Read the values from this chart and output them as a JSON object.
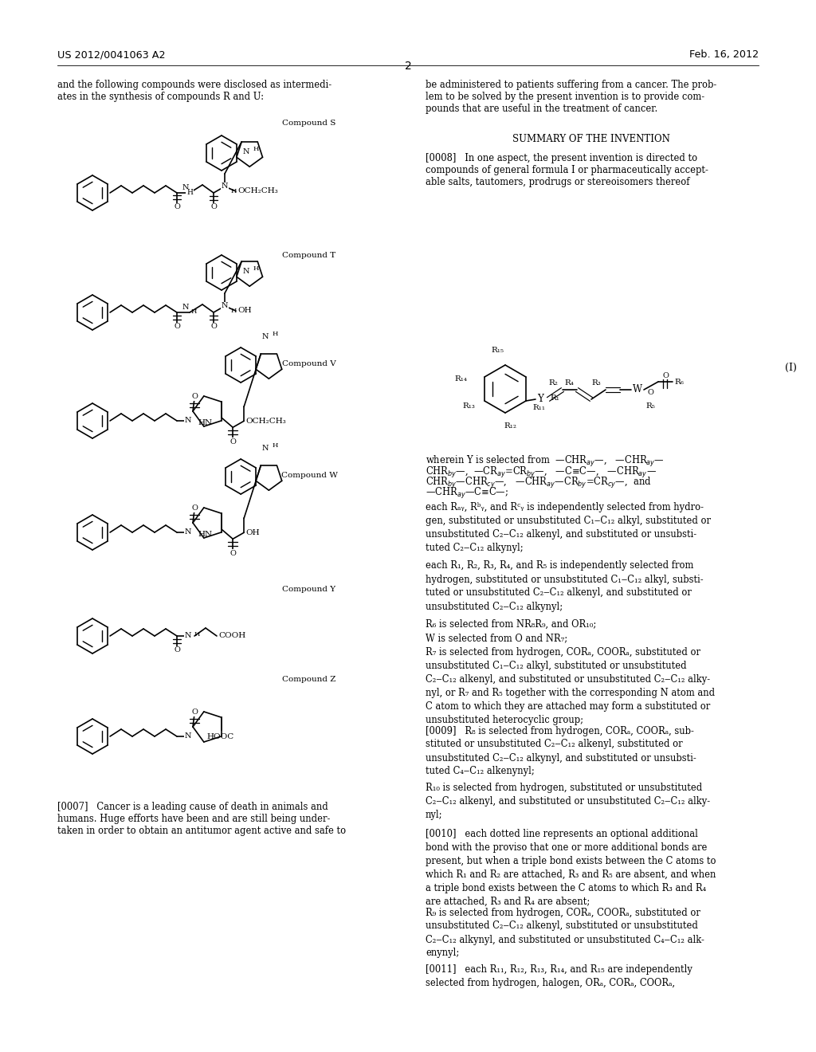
{
  "bg": "#ffffff",
  "header_left": "US 2012/0041063 A2",
  "header_right": "Feb. 16, 2012",
  "header_center": "2",
  "left_col_intro": "and the following compounds were disclosed as intermedi-\nates in the synthesis of compounds R and U:",
  "right_col_intro": "be administered to patients suffering from a cancer. The prob-\nlem to be solved by the present invention is to provide com-\npounds that are useful in the treatment of cancer.",
  "summary_title": "SUMMARY OF THE INVENTION",
  "para_0008": "[0008]   In one aspect, the present invention is directed to\ncompounds of general formula I or pharmaceutically accept-\nable salts, tautomers, prodrugs or stereoisomers thereof",
  "para_ray": "each Rₐᵧ, Rᵇᵧ, and Rᶜᵧ is independently selected from hydro-\ngen, substituted or unsubstituted C₁‒C₁₂ alkyl, substituted or\nunsubstituted C₂‒C₁₂ alkenyl, and substituted or unsubsti-\ntuted C₂‒C₁₂ alkynyl;",
  "para_r1": "each R₁, R₂, R₃, R₄, and R₅ is independently selected from\nhydrogen, substituted or unsubstituted C₁‒C₁₂ alkyl, substi-\ntuted or unsubstituted C₂‒C₁₂ alkenyl, and substituted or\nunsubstituted C₂‒C₁₂ alkynyl;",
  "para_r6": "R₆ is selected from NR₈R₉, and OR₁₀;",
  "para_w": "W is selected from O and NR₇;",
  "para_r7": "R₇ is selected from hydrogen, CORₐ, COORₐ, substituted or\nunsubstituted C₁‒C₁₂ alkyl, substituted or unsubstituted\nC₂‒C₁₂ alkenyl, and substituted or unsubstituted C₂‒C₁₂ alky-\nnyl, or R₇ and R₅ together with the corresponding N atom and\nC atom to which they are attached may form a substituted or\nunsubstituted heterocyclic group;",
  "para_0009": "[0009]   R₈ is selected from hydrogen, CORₐ, COORₐ, sub-\nstituted or unsubstituted C₂‒C₁₂ alkenyl, substituted or\nunsubstituted C₂‒C₁₂ alkynyl, and substituted or unsubsti-\ntuted C₄‒C₁₂ alkenynyl;",
  "para_r10": "R₁₀ is selected from hydrogen, substituted or unsubstituted\nC₂‒C₁₂ alkenyl, and substituted or unsubstituted C₂‒C₁₂ alky-\nnyl;",
  "para_0010": "[0010]   each dotted line represents an optional additional\nbond with the proviso that one or more additional bonds are\npresent, but when a triple bond exists between the C atoms to\nwhich R₁ and R₂ are attached, R₃ and R₅ are absent, and when\na triple bond exists between the C atoms to which R₃ and R₄\nare attached, R₃ and R₄ are absent;",
  "para_r9": "R₉ is selected from hydrogen, CORₐ, COORₐ, substituted or\nunsubstituted C₂‒C₁₂ alkenyl, substituted or unsubstituted\nC₂‒C₁₂ alkynyl, and substituted or unsubstituted C₄‒C₁₂ alk-\nenynyl;",
  "para_0011": "[0011]   each R₁₁, R₁₂, R₁₃, R₁₄, and R₁₅ are independently\nselected from hydrogen, halogen, ORₐ, CORₐ, COORₐ,",
  "para_0007": "[0007]   Cancer is a leading cause of death in animals and\nhumans. Huge efforts have been and are still being under-\ntaken in order to obtain an antitumor agent active and safe to",
  "compound_labels": [
    "Compound S",
    "Compound T",
    "Compound V",
    "Compound W",
    "Compound Y",
    "Compound Z"
  ]
}
